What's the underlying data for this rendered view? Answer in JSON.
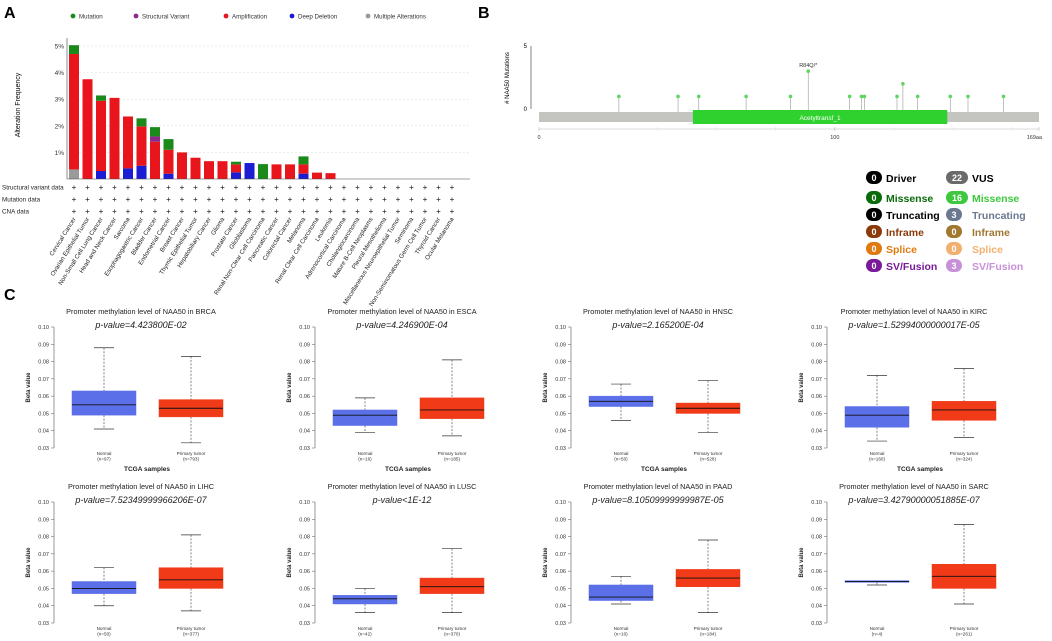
{
  "panel_labels": {
    "a": "A",
    "b": "B",
    "c": "C"
  },
  "legend_a": [
    {
      "label": "Mutation",
      "color": "#1a8a1a"
    },
    {
      "label": "Structural Variant",
      "color": "#8b2a8b"
    },
    {
      "label": "Amplification",
      "color": "#e8161c"
    },
    {
      "label": "Deep Deletion",
      "color": "#1c1cd2"
    },
    {
      "label": "Multiple Alterations",
      "color": "#9a9a9a"
    }
  ],
  "track_labels": [
    "Structural variant data",
    "Mutation data",
    "CNA data"
  ],
  "lollipop": {
    "ylabel": "# NAA50 Mutations",
    "y_ticks": [
      "5",
      "0"
    ],
    "domain_label": "Acetyltransf_1",
    "annotation": "R84Q/*",
    "x_ticks": [
      "0",
      "100",
      "169aa"
    ]
  },
  "mutation_legend": {
    "left": [
      {
        "count": "0",
        "label": "Driver",
        "badge": "#000000",
        "text_color": "#000000"
      },
      {
        "count": "0",
        "label": "Missense",
        "badge": "#0a6b0a",
        "text_color": "#0a6b0a"
      },
      {
        "count": "0",
        "label": "Truncating",
        "badge": "#000000",
        "text_color": "#000000"
      },
      {
        "count": "0",
        "label": "Inframe",
        "badge": "#8b3a0a",
        "text_color": "#8b3a0a"
      },
      {
        "count": "0",
        "label": "Splice",
        "badge": "#e07a10",
        "text_color": "#e07a10"
      },
      {
        "count": "0",
        "label": "SV/Fusion",
        "badge": "#7a1a9a",
        "text_color": "#7a1a9a"
      }
    ],
    "right": [
      {
        "count": "22",
        "label": "VUS",
        "badge": "#6a6a6a",
        "text_color": "#000000"
      },
      {
        "count": "16",
        "label": "Missense",
        "badge": "#3ec83e",
        "text_color": "#3ec83e"
      },
      {
        "count": "3",
        "label": "Truncating",
        "badge": "#6a7890",
        "text_color": "#6a7890"
      },
      {
        "count": "0",
        "label": "Inframe",
        "badge": "#a07830",
        "text_color": "#a07830"
      },
      {
        "count": "0",
        "label": "Splice",
        "badge": "#f2b070",
        "text_color": "#f2b070"
      },
      {
        "count": "3",
        "label": "SV/Fusion",
        "badge": "#c890d8",
        "text_color": "#c890d8"
      }
    ]
  },
  "boxplot_common": {
    "ylabel": "Beta value",
    "xlabel": "TCGA samples",
    "group_normal": "Normal",
    "group_tumor": "Primary tumor"
  },
  "chart_data": [
    {
      "type": "bar",
      "title": "",
      "xlabel": "",
      "ylabel": "Alteration Frequency",
      "ylim": [
        0,
        5.3
      ],
      "yticks": [
        "1%",
        "2%",
        "3%",
        "4%",
        "5%"
      ],
      "categories": [
        "Cervical Cancer",
        "Ovarian Epithelial Tumor",
        "Non-Small Cell Lung Cancer",
        "Head and Neck Cancer",
        "Sarcoma",
        "Esophagogastric Cancer",
        "Bladder Cancer",
        "Endometrial Cancer",
        "Breast Cancer",
        "Thymic Epithelial Tumor",
        "Hepatobiliary Cancer",
        "Glioma",
        "Prostate Cancer",
        "Glioblastoma",
        "Renal Non-Clear Cell Carcinoma",
        "Pancreatic Cancer",
        "Colorectal Cancer",
        "Melanoma",
        "Renal Clear Cell Carcinoma",
        "Leukemia",
        "Adrenocortical Carcinoma",
        "Cholangiocarcinoma",
        "Mature B-Cell Neoplasms",
        "Pleural Mesothelioma",
        "Miscellaneous Neuroepithelial Tumor",
        "Seminoma",
        "Non-Seminomatous Germ Cell Tumor",
        "Thyroid Cancer",
        "Ocular Melanoma"
      ],
      "series": [
        {
          "name": "Multiple Alterations",
          "values": [
            0.36,
            0,
            0,
            0,
            0,
            0,
            0,
            0,
            0,
            0,
            0,
            0,
            0,
            0,
            0,
            0,
            0,
            0,
            0,
            0,
            0,
            0,
            0,
            0,
            0,
            0,
            0,
            0,
            0
          ]
        },
        {
          "name": "Deep Deletion",
          "values": [
            0,
            0,
            0.3,
            0,
            0.4,
            0.5,
            0,
            0.2,
            0,
            0,
            0,
            0,
            0.25,
            0.6,
            0,
            0,
            0,
            0.2,
            0,
            0,
            0,
            0,
            0,
            0,
            0,
            0,
            0,
            0,
            0
          ]
        },
        {
          "name": "Amplification",
          "values": [
            4.34,
            3.75,
            2.64,
            3.05,
            1.95,
            1.48,
            1.4,
            0.9,
            1.0,
            0.8,
            0.67,
            0.67,
            0.3,
            0,
            0,
            0.55,
            0.55,
            0.35,
            0.24,
            0.22,
            0,
            0,
            0,
            0,
            0,
            0,
            0,
            0,
            0
          ]
        },
        {
          "name": "Structural Variant",
          "values": [
            0,
            0,
            0,
            0,
            0,
            0,
            0.2,
            0,
            0,
            0,
            0,
            0,
            0,
            0,
            0,
            0,
            0,
            0,
            0,
            0,
            0,
            0,
            0,
            0,
            0,
            0,
            0,
            0,
            0
          ]
        },
        {
          "name": "Mutation",
          "values": [
            0.33,
            0,
            0.2,
            0,
            0,
            0.3,
            0.35,
            0.4,
            0,
            0,
            0,
            0,
            0.1,
            0,
            0.56,
            0,
            0,
            0.3,
            0,
            0,
            0,
            0,
            0,
            0,
            0,
            0,
            0,
            0,
            0
          ]
        }
      ]
    },
    {
      "type": "scatter",
      "title": "NAA50 mutation lollipop",
      "xlabel": "",
      "ylabel": "# NAA50 Mutations",
      "xlim": [
        0,
        169
      ],
      "ylim": [
        0,
        5
      ],
      "domain": {
        "name": "Acetyltransf_1",
        "start": 52,
        "end": 138
      },
      "x": [
        27,
        47,
        54,
        70,
        85,
        91,
        105,
        109,
        110,
        121,
        123,
        128,
        139,
        145,
        157
      ],
      "y": [
        1,
        1,
        1,
        1,
        1,
        3,
        1,
        1,
        1,
        1,
        2,
        1,
        1,
        1,
        1
      ],
      "labeled_point": {
        "x": 91,
        "label": "R84Q/*"
      }
    },
    {
      "type": "boxplot",
      "ylim": [
        0.03,
        0.1
      ],
      "yticks": [
        0.03,
        0.04,
        0.05,
        0.06,
        0.07,
        0.08,
        0.09,
        0.1
      ],
      "panels": [
        {
          "title": "Promoter methylation level of NAA50 in BRCA",
          "pvalue": "p-value=4.423800E-02",
          "n_normal": "(n=97)",
          "n_tumor": "(n=793)",
          "normal": [
            0.041,
            0.049,
            0.055,
            0.063,
            0.088
          ],
          "tumor": [
            0.033,
            0.048,
            0.053,
            0.058,
            0.083
          ]
        },
        {
          "title": "Promoter methylation level of NAA50 in ESCA",
          "pvalue": "p-value=4.246900E-04",
          "n_normal": "(n=16)",
          "n_tumor": "(n=185)",
          "normal": [
            0.039,
            0.043,
            0.049,
            0.052,
            0.059
          ],
          "tumor": [
            0.037,
            0.047,
            0.052,
            0.059,
            0.081
          ]
        },
        {
          "title": "Promoter methylation level of NAA50 in HNSC",
          "pvalue": "p-value=2.165200E-04",
          "n_normal": "(n=50)",
          "n_tumor": "(n=528)",
          "normal": [
            0.046,
            0.054,
            0.057,
            0.06,
            0.067
          ],
          "tumor": [
            0.039,
            0.05,
            0.053,
            0.056,
            0.069
          ]
        },
        {
          "title": "Promoter methylation level of NAA50 in KIRC",
          "pvalue": "p-value=1.52994000000017E-05",
          "n_normal": "(n=160)",
          "n_tumor": "(n=324)",
          "normal": [
            0.034,
            0.042,
            0.049,
            0.054,
            0.072
          ],
          "tumor": [
            0.036,
            0.046,
            0.052,
            0.057,
            0.076
          ]
        },
        {
          "title": "Promoter methylation level of NAA50 in LIHC",
          "pvalue": "p-value=7.52349999966206E-07",
          "n_normal": "(n=50)",
          "n_tumor": "(n=377)",
          "normal": [
            0.04,
            0.047,
            0.05,
            0.054,
            0.062
          ],
          "tumor": [
            0.037,
            0.05,
            0.055,
            0.062,
            0.081
          ]
        },
        {
          "title": "Promoter methylation level of NAA50 in LUSC",
          "pvalue": "p-value<1E-12",
          "n_normal": "(n=42)",
          "n_tumor": "(n=370)",
          "normal": [
            0.036,
            0.041,
            0.044,
            0.046,
            0.05
          ],
          "tumor": [
            0.036,
            0.047,
            0.051,
            0.056,
            0.073
          ]
        },
        {
          "title": "Promoter methylation level of NAA50 in PAAD",
          "pvalue": "p-value=8.10509999999987E-05",
          "n_normal": "(n=10)",
          "n_tumor": "(n=184)",
          "normal": [
            0.041,
            0.043,
            0.045,
            0.052,
            0.057
          ],
          "tumor": [
            0.036,
            0.051,
            0.056,
            0.061,
            0.078
          ]
        },
        {
          "title": "Promoter methylation level of NAA50 in SARC",
          "pvalue": "p-value=3.42790000051885E-07",
          "n_normal": "(n=4)",
          "n_tumor": "(n=261)",
          "normal": [
            0.052,
            0.0535,
            0.054,
            0.0545,
            0.054
          ],
          "tumor": [
            0.041,
            0.05,
            0.057,
            0.064,
            0.087
          ]
        }
      ]
    }
  ]
}
